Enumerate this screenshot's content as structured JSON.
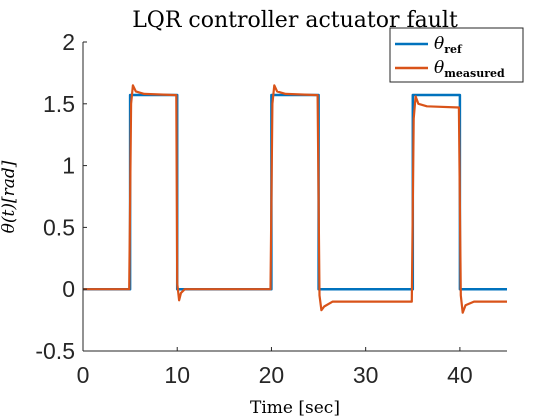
{
  "chart_data": {
    "type": "line",
    "title": "LQR controller actuator fault",
    "xlabel": "Time [sec]",
    "ylabel": "θ(t)[rad]",
    "xlim": [
      0,
      45
    ],
    "ylim": [
      -0.5,
      2
    ],
    "xticks": [
      "0",
      "10",
      "20",
      "30",
      "40"
    ],
    "yticks": [
      "-0.5",
      "0",
      "0.5",
      "1",
      "1.5",
      "2"
    ],
    "grid": false,
    "legend_position": "top-right",
    "series": [
      {
        "name": "θ_ref",
        "legend_main": "θ",
        "legend_sub": "ref",
        "color": "#0072BD",
        "x": [
          0,
          5,
          5,
          10,
          10,
          20,
          20,
          25,
          25,
          35,
          35,
          40,
          40,
          45
        ],
        "y": [
          0,
          0,
          1.5708,
          1.5708,
          0,
          0,
          1.5708,
          1.5708,
          0,
          0,
          1.5708,
          1.5708,
          0,
          0
        ]
      },
      {
        "name": "θ_measured",
        "legend_main": "θ",
        "legend_sub": "measured",
        "color": "#D95319",
        "x": [
          0,
          4.9,
          5.1,
          5.3,
          5.6,
          6.5,
          9.9,
          10.0,
          10.2,
          10.4,
          10.8,
          11.5,
          19.9,
          20.1,
          20.3,
          20.6,
          21.5,
          24.9,
          25.1,
          25.3,
          25.6,
          26.5,
          34.9,
          35.1,
          35.3,
          35.6,
          36.5,
          39.9,
          40.1,
          40.3,
          40.6,
          41.5,
          45
        ],
        "y": [
          0,
          0,
          1.5,
          1.65,
          1.6,
          1.58,
          1.57,
          0.05,
          -0.09,
          -0.03,
          0.0,
          0.0,
          0.0,
          1.5,
          1.65,
          1.6,
          1.58,
          1.57,
          -0.05,
          -0.17,
          -0.14,
          -0.1,
          -0.1,
          1.38,
          1.56,
          1.5,
          1.48,
          1.47,
          -0.05,
          -0.19,
          -0.13,
          -0.1,
          -0.1
        ]
      }
    ]
  }
}
